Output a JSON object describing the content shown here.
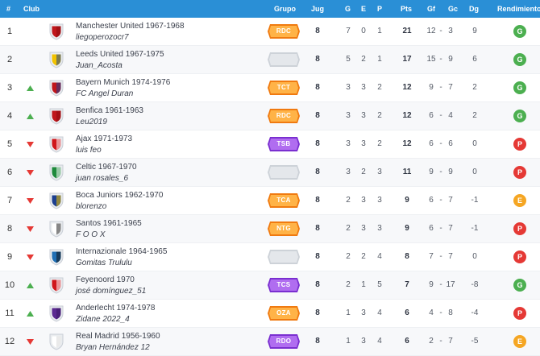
{
  "header": {
    "pos": "#",
    "club": "Club",
    "grupo": "Grupo",
    "jug": "Jug",
    "g": "G",
    "e": "E",
    "p": "P",
    "pts": "Pts",
    "gf": "Gf",
    "gc": "Gc",
    "dg": "Dg",
    "rendimiento": "Rendimiento"
  },
  "colors": {
    "header_bg": "#2a8fd6",
    "good": "#4caf50",
    "poor": "#e53935",
    "even": "#f5a623",
    "trend_up": "#4caf50",
    "trend_down": "#e53935"
  },
  "rows": [
    {
      "pos": "1",
      "trend": "none",
      "crest": "red-shield-icon",
      "crest_colors": [
        "#c0161b",
        "#8a0d10"
      ],
      "club": "Manchester United 1967-1968",
      "manager": "liegoperozocr7",
      "grupo": "RDC",
      "grupo_style": "orange",
      "jug": "8",
      "g": "7",
      "e": "0",
      "p": "1",
      "pts": "21",
      "gf": "12",
      "gc": "3",
      "dg": "9",
      "rend": "G",
      "rend_style": "good"
    },
    {
      "pos": "2",
      "trend": "none",
      "crest": "blue-yellow-shield-icon",
      "crest_colors": [
        "#f2c300",
        "#1c3f8f"
      ],
      "club": "Leeds United 1967-1975",
      "manager": "Juan_Acosta",
      "grupo": "",
      "grupo_style": "gray",
      "jug": "8",
      "g": "5",
      "e": "2",
      "p": "1",
      "pts": "17",
      "gf": "15",
      "gc": "9",
      "dg": "6",
      "rend": "G",
      "rend_style": "good"
    },
    {
      "pos": "3",
      "trend": "up",
      "crest": "blue-red-shield-icon",
      "crest_colors": [
        "#c0161b",
        "#1c3f8f"
      ],
      "club": "Bayern Munich 1974-1976",
      "manager": "FC Angel Duran",
      "grupo": "TCT",
      "grupo_style": "orange",
      "jug": "8",
      "g": "3",
      "e": "3",
      "p": "2",
      "pts": "12",
      "gf": "9",
      "gc": "7",
      "dg": "2",
      "rend": "G",
      "rend_style": "good"
    },
    {
      "pos": "4",
      "trend": "up",
      "crest": "red-shield-icon",
      "crest_colors": [
        "#c0161b",
        "#8a0d10"
      ],
      "club": "Benfica 1961-1963",
      "manager": "Leu2019",
      "grupo": "RDC",
      "grupo_style": "orange",
      "jug": "8",
      "g": "3",
      "e": "3",
      "p": "2",
      "pts": "12",
      "gf": "6",
      "gc": "4",
      "dg": "2",
      "rend": "G",
      "rend_style": "good"
    },
    {
      "pos": "5",
      "trend": "down",
      "crest": "red-white-striped-shield-icon",
      "crest_colors": [
        "#d0161b",
        "#ffffff"
      ],
      "club": "Ajax 1971-1973",
      "manager": "luis feo",
      "grupo": "TSB",
      "grupo_style": "purple",
      "jug": "8",
      "g": "3",
      "e": "3",
      "p": "2",
      "pts": "12",
      "gf": "6",
      "gc": "6",
      "dg": "0",
      "rend": "P",
      "rend_style": "poor"
    },
    {
      "pos": "6",
      "trend": "down",
      "crest": "green-white-hoops-shield-icon",
      "crest_colors": [
        "#1e8a3c",
        "#ffffff"
      ],
      "club": "Celtic 1967-1970",
      "manager": "juan rosales_6",
      "grupo": "",
      "grupo_style": "gray",
      "jug": "8",
      "g": "3",
      "e": "2",
      "p": "3",
      "pts": "11",
      "gf": "9",
      "gc": "9",
      "dg": "0",
      "rend": "P",
      "rend_style": "poor"
    },
    {
      "pos": "7",
      "trend": "down",
      "crest": "blue-yellow-band-shield-icon",
      "crest_colors": [
        "#1c3f8f",
        "#f2c300"
      ],
      "club": "Boca Juniors 1962-1970",
      "manager": "blorenzo",
      "grupo": "TCA",
      "grupo_style": "orange",
      "jug": "8",
      "g": "2",
      "e": "3",
      "p": "3",
      "pts": "9",
      "gf": "6",
      "gc": "7",
      "dg": "-1",
      "rend": "E",
      "rend_style": "even"
    },
    {
      "pos": "8",
      "trend": "down",
      "crest": "black-white-shield-icon",
      "crest_colors": [
        "#ffffff",
        "#222222"
      ],
      "club": "Santos 1961-1965",
      "manager": "F O O X",
      "grupo": "NTG",
      "grupo_style": "orange",
      "jug": "8",
      "g": "2",
      "e": "3",
      "p": "3",
      "pts": "9",
      "gf": "6",
      "gc": "7",
      "dg": "-1",
      "rend": "P",
      "rend_style": "poor"
    },
    {
      "pos": "9",
      "trend": "down",
      "crest": "blue-black-striped-shield-icon",
      "crest_colors": [
        "#1f6fb5",
        "#111111"
      ],
      "club": "Internazionale 1964-1965",
      "manager": "Gomitas Trululu",
      "grupo": "",
      "grupo_style": "gray",
      "jug": "8",
      "g": "2",
      "e": "2",
      "p": "4",
      "pts": "8",
      "gf": "7",
      "gc": "7",
      "dg": "0",
      "rend": "P",
      "rend_style": "poor"
    },
    {
      "pos": "10",
      "trend": "up",
      "crest": "red-white-shield-icon",
      "crest_colors": [
        "#d0161b",
        "#ffffff"
      ],
      "club": "Feyenoord 1970",
      "manager": "josé domínguez_51",
      "grupo": "TCS",
      "grupo_style": "purple",
      "jug": "8",
      "g": "2",
      "e": "1",
      "p": "5",
      "pts": "7",
      "gf": "9",
      "gc": "17",
      "dg": "-8",
      "rend": "G",
      "rend_style": "good"
    },
    {
      "pos": "11",
      "trend": "up",
      "crest": "purple-shield-icon",
      "crest_colors": [
        "#5b2a91",
        "#3a1766"
      ],
      "club": "Anderlecht 1974-1978",
      "manager": "Zidane 2022_4",
      "grupo": "OZA",
      "grupo_style": "orange",
      "jug": "8",
      "g": "1",
      "e": "3",
      "p": "4",
      "pts": "6",
      "gf": "4",
      "gc": "8",
      "dg": "-4",
      "rend": "P",
      "rend_style": "poor"
    },
    {
      "pos": "12",
      "trend": "down",
      "crest": "white-shield-icon",
      "crest_colors": [
        "#ffffff",
        "#d9d9d9"
      ],
      "club": "Real Madrid 1956-1960",
      "manager": "Bryan Hernández 12",
      "grupo": "RDO",
      "grupo_style": "purple",
      "jug": "8",
      "g": "1",
      "e": "3",
      "p": "4",
      "pts": "6",
      "gf": "2",
      "gc": "7",
      "dg": "-5",
      "rend": "E",
      "rend_style": "even"
    }
  ]
}
